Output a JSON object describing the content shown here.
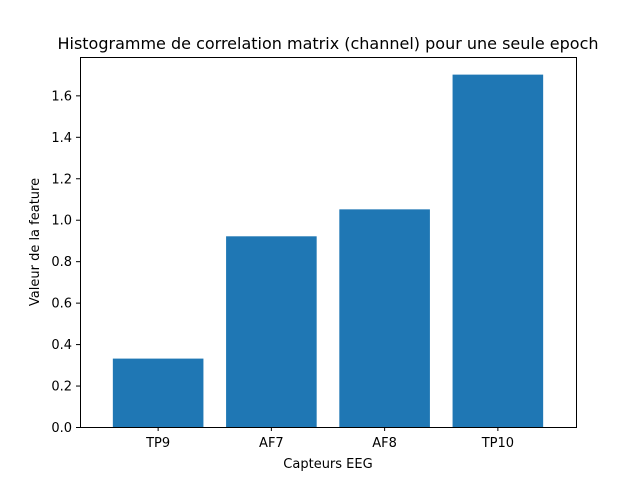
{
  "chart_data": {
    "type": "bar",
    "title": "Histogramme de correlation matrix (channel) pour une seule epoch",
    "xlabel": "Capteurs EEG",
    "ylabel": "Valeur de la feature",
    "categories": [
      "TP9",
      "AF7",
      "AF8",
      "TP10"
    ],
    "values": [
      0.33,
      0.92,
      1.05,
      1.7
    ],
    "ylim": [
      0,
      1.785
    ],
    "yticks": [
      "0.0",
      "0.2",
      "0.4",
      "0.6",
      "0.8",
      "1.0",
      "1.2",
      "1.4",
      "1.6"
    ],
    "grid": false,
    "bar_color": "#1f77b4"
  }
}
